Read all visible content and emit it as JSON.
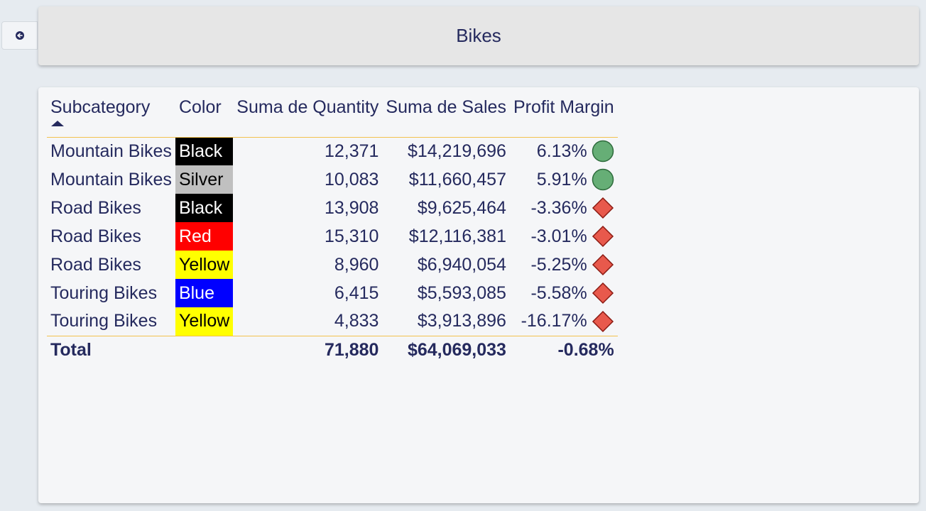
{
  "sidebar_toggle": {
    "icon": "collapse-toggle-icon"
  },
  "header": {
    "title": "Bikes"
  },
  "table": {
    "columns": [
      "Subcategory",
      "Color",
      "Suma de Quantity",
      "Suma de Sales",
      "Profit Margin"
    ],
    "sort": {
      "column": "Subcategory",
      "direction": "ascending"
    },
    "rows": [
      {
        "subcategory": "Mountain Bikes",
        "color": "Black",
        "color_bg": "#000000",
        "color_fg": "#ffffff",
        "quantity": "12,371",
        "sales": "$14,219,696",
        "margin": "6.13%",
        "indicator": "green-circle"
      },
      {
        "subcategory": "Mountain Bikes",
        "color": "Silver",
        "color_bg": "#c0c0c0",
        "color_fg": "#000000",
        "quantity": "10,083",
        "sales": "$11,660,457",
        "margin": "5.91%",
        "indicator": "green-circle"
      },
      {
        "subcategory": "Road Bikes",
        "color": "Black",
        "color_bg": "#000000",
        "color_fg": "#ffffff",
        "quantity": "13,908",
        "sales": "$9,625,464",
        "margin": "-3.36%",
        "indicator": "red-diamond"
      },
      {
        "subcategory": "Road Bikes",
        "color": "Red",
        "color_bg": "#ff0000",
        "color_fg": "#ffffff",
        "quantity": "15,310",
        "sales": "$12,116,381",
        "margin": "-3.01%",
        "indicator": "red-diamond"
      },
      {
        "subcategory": "Road Bikes",
        "color": "Yellow",
        "color_bg": "#ffff00",
        "color_fg": "#000000",
        "quantity": "8,960",
        "sales": "$6,940,054",
        "margin": "-5.25%",
        "indicator": "red-diamond"
      },
      {
        "subcategory": "Touring Bikes",
        "color": "Blue",
        "color_bg": "#0000ff",
        "color_fg": "#ffffff",
        "quantity": "6,415",
        "sales": "$5,593,085",
        "margin": "-5.58%",
        "indicator": "red-diamond"
      },
      {
        "subcategory": "Touring Bikes",
        "color": "Yellow",
        "color_bg": "#ffff00",
        "color_fg": "#000000",
        "quantity": "4,833",
        "sales": "$3,913,896",
        "margin": "-16.17%",
        "indicator": "red-diamond"
      }
    ],
    "total": {
      "label": "Total",
      "quantity": "71,880",
      "sales": "$64,069,033",
      "margin": "-0.68%"
    }
  },
  "colors": {
    "text": "#252a5e",
    "divider": "#f2c14e",
    "positive_indicator": "#66ae76",
    "negative_indicator": "#e8594c"
  }
}
